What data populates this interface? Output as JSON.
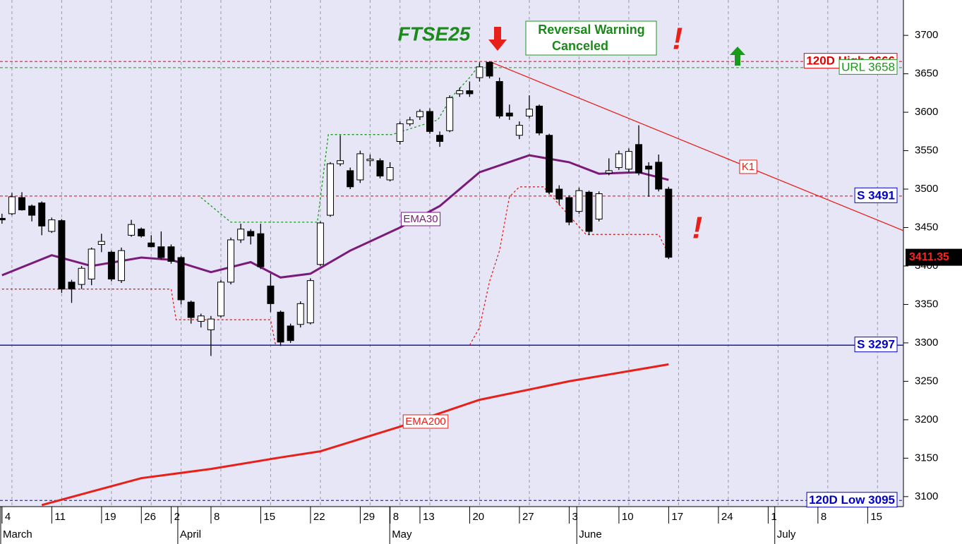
{
  "chart_data": {
    "type": "candlestick",
    "title": "FTSE25",
    "xlim": [
      -0.2,
      90.6
    ],
    "ylim": [
      3087,
      3746
    ],
    "yticks": [
      3100,
      3150,
      3200,
      3250,
      3300,
      3350,
      3400,
      3450,
      3500,
      3550,
      3600,
      3650,
      3700
    ],
    "xticks": [
      {
        "value": 1,
        "label": "4"
      },
      {
        "value": 6,
        "label": "11"
      },
      {
        "value": 11,
        "label": "19"
      },
      {
        "value": 15,
        "label": "26"
      },
      {
        "value": 18,
        "label": "2"
      },
      {
        "value": 22,
        "label": "8"
      },
      {
        "value": 27,
        "label": "15"
      },
      {
        "value": 32,
        "label": "22"
      },
      {
        "value": 37,
        "label": "29"
      },
      {
        "value": 40,
        "label": "8"
      },
      {
        "value": 43,
        "label": "13"
      },
      {
        "value": 48,
        "label": "20"
      },
      {
        "value": 53,
        "label": "27"
      },
      {
        "value": 58,
        "label": "3"
      },
      {
        "value": 63,
        "label": "10"
      },
      {
        "value": 68,
        "label": "17"
      },
      {
        "value": 73,
        "label": "24"
      },
      {
        "value": 78,
        "label": "1"
      },
      {
        "value": 83,
        "label": "8"
      },
      {
        "value": 88,
        "label": "15"
      }
    ],
    "months": [
      {
        "value": -0.2,
        "label": "March"
      },
      {
        "value": 17.6,
        "label": "April"
      },
      {
        "value": 38.9,
        "label": "May"
      },
      {
        "value": 57.7,
        "label": "June"
      },
      {
        "value": 77.6,
        "label": "July"
      }
    ],
    "grid": true,
    "candles": {
      "open": [
        3462,
        3468,
        3489,
        3478,
        3482,
        3445,
        3459,
        3379,
        3376,
        3383,
        3428,
        3418,
        3381,
        3440,
        3448,
        3430,
        3425,
        3425,
        3411,
        3353,
        3328,
        3317,
        3335,
        3379,
        3434,
        3445,
        3442,
        3374,
        3340,
        3322,
        3324,
        3326,
        3402,
        3466,
        3533,
        3524,
        3512,
        3537,
        3537,
        3512,
        3562,
        3585,
        3594,
        3601,
        3570,
        3576,
        3624,
        3628,
        3645,
        3665,
        3640,
        3599,
        3570,
        3595,
        3608,
        3570,
        3500,
        3489,
        3471,
        3496,
        3461,
        3521,
        3528,
        3526,
        3558,
        3530,
        3535,
        3500
      ],
      "high": [
        3468,
        3495,
        3496,
        3480,
        3484,
        3463,
        3461,
        3382,
        3400,
        3424,
        3442,
        3420,
        3424,
        3460,
        3450,
        3440,
        3445,
        3428,
        3413,
        3355,
        3338,
        3335,
        3382,
        3437,
        3455,
        3448,
        3455,
        3390,
        3342,
        3325,
        3354,
        3384,
        3458,
        3535,
        3570,
        3528,
        3550,
        3545,
        3540,
        3535,
        3588,
        3594,
        3604,
        3605,
        3575,
        3622,
        3632,
        3640,
        3665,
        3666,
        3645,
        3610,
        3588,
        3622,
        3610,
        3572,
        3505,
        3492,
        3502,
        3498,
        3497,
        3540,
        3550,
        3553,
        3583,
        3535,
        3545,
        3503
      ],
      "low": [
        3455,
        3466,
        3472,
        3458,
        3440,
        3443,
        3365,
        3352,
        3370,
        3375,
        3418,
        3380,
        3378,
        3438,
        3437,
        3424,
        3408,
        3403,
        3350,
        3325,
        3320,
        3283,
        3333,
        3376,
        3430,
        3428,
        3396,
        3340,
        3296,
        3300,
        3320,
        3324,
        3400,
        3464,
        3530,
        3500,
        3508,
        3530,
        3514,
        3510,
        3558,
        3582,
        3590,
        3572,
        3555,
        3574,
        3620,
        3620,
        3640,
        3644,
        3592,
        3590,
        3565,
        3592,
        3570,
        3493,
        3480,
        3453,
        3468,
        3440,
        3458,
        3518,
        3525,
        3522,
        3518,
        3490,
        3497,
        3409
      ],
      "close": [
        3460,
        3490,
        3473,
        3466,
        3452,
        3460,
        3370,
        3370,
        3397,
        3422,
        3432,
        3383,
        3420,
        3454,
        3439,
        3425,
        3411,
        3406,
        3356,
        3333,
        3335,
        3331,
        3379,
        3434,
        3448,
        3439,
        3399,
        3351,
        3301,
        3303,
        3351,
        3381,
        3456,
        3533,
        3537,
        3503,
        3546,
        3539,
        3517,
        3528,
        3585,
        3590,
        3601,
        3575,
        3562,
        3619,
        3628,
        3624,
        3659,
        3647,
        3595,
        3595,
        3583,
        3604,
        3573,
        3496,
        3487,
        3457,
        3498,
        3445,
        3494,
        3524,
        3546,
        3549,
        3521,
        3526,
        3500,
        3411.35
      ]
    },
    "series": [
      {
        "name": "EMA30",
        "color": "#7a1a7a",
        "x": [
          0,
          5,
          9,
          14,
          17,
          21,
          25,
          28,
          31,
          35,
          40,
          44,
          48,
          53,
          57,
          60,
          64,
          67
        ],
        "values": [
          3388,
          3414,
          3400,
          3411,
          3408,
          3392,
          3405,
          3385,
          3390,
          3420,
          3450,
          3478,
          3522,
          3544,
          3535,
          3520,
          3522,
          3512
        ]
      },
      {
        "name": "EMA200",
        "color": "#e8201a",
        "x": [
          4,
          14,
          21,
          28,
          32,
          40,
          48,
          57,
          67
        ],
        "values": [
          3089,
          3124,
          3136,
          3151,
          3159,
          3191,
          3226,
          3250,
          3272
        ]
      }
    ],
    "stops": [
      {
        "color": "#e8201a",
        "x": [
          0,
          17,
          17.5,
          27,
          27.5,
          null,
          47,
          48,
          49,
          50,
          51,
          52,
          54.4,
          58.7,
          66,
          67
        ],
        "values": [
          3370,
          3370,
          3330,
          3330,
          3297,
          null,
          3297,
          3320,
          3380,
          3420,
          3490,
          3503,
          3503,
          3441,
          3441,
          3415
        ]
      },
      {
        "color": "#1a9a1a",
        "x": [
          20,
          23,
          31.7,
          32.8,
          39.2,
          43.8,
          45.2,
          47,
          48
        ],
        "values": [
          3489,
          3457,
          3457,
          3571,
          3571,
          3590,
          3620,
          3645,
          3662
        ]
      }
    ],
    "trendline": {
      "label": "K1",
      "color": "#e8201a",
      "x": [
        49,
        90.6
      ],
      "values": [
        3666,
        3446
      ]
    },
    "levels": [
      {
        "label": "120D High 3666",
        "value": 3666,
        "color": "#e00000",
        "label_color": "#e00000",
        "dashed": true
      },
      {
        "label": "URL 3658",
        "value": 3658,
        "color": "#1a9a1a",
        "label_color": "#1a9a1a",
        "dashed": true
      },
      {
        "label": "S 3491",
        "value": 3491,
        "color": "#e00000",
        "label_color": "#0000c8",
        "dashed": true
      },
      {
        "label": "S 3297",
        "value": 3297,
        "color": "#1a1aa8",
        "label_color": "#0000c8",
        "dashed": false
      },
      {
        "label": "120D Low 3095",
        "value": 3095,
        "color": "#0000c8",
        "label_color": "#0000c8",
        "dashed": true
      }
    ],
    "last_price": 3411.35,
    "warning_box": [
      "Reversal Warning",
      "Canceled"
    ],
    "alerts": [
      "!",
      "!"
    ]
  }
}
